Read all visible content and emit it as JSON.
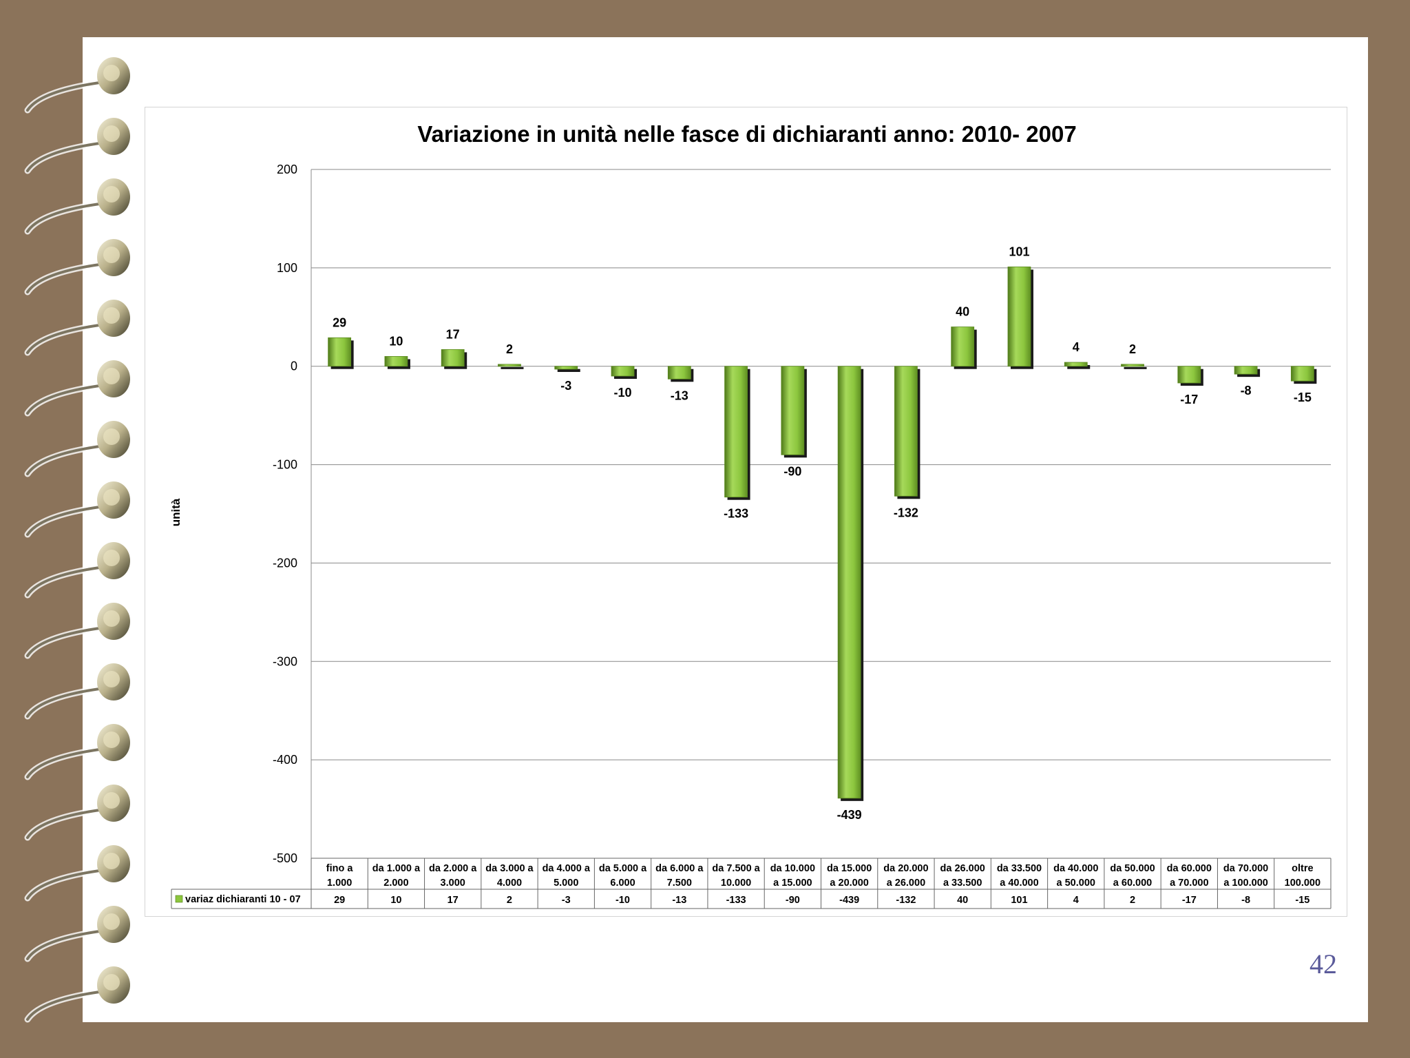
{
  "page": {
    "number": "42"
  },
  "colors": {
    "background": "#8b735a",
    "bar": "#8cc63e",
    "bar_dark": "#4f7a1a",
    "shadow": "#1a1a1a",
    "grid": "#888888"
  },
  "chart_data": {
    "type": "bar",
    "title": "Variazione in unità nelle fasce di  dichiaranti anno: 2010- 2007",
    "xlabel": "",
    "ylabel": "unità",
    "ylim": [
      -500,
      200
    ],
    "yticks": [
      200,
      100,
      0,
      -100,
      -200,
      -300,
      -400,
      -500
    ],
    "grid": true,
    "categories": [
      [
        "fino a",
        "1.000"
      ],
      [
        "da 1.000 a",
        "2.000"
      ],
      [
        "da 2.000 a",
        "3.000"
      ],
      [
        "da 3.000 a",
        "4.000"
      ],
      [
        "da 4.000 a",
        "5.000"
      ],
      [
        "da 5.000 a",
        "6.000"
      ],
      [
        "da 6.000 a",
        "7.500"
      ],
      [
        "da 7.500 a",
        "10.000"
      ],
      [
        "da 10.000",
        "a 15.000"
      ],
      [
        "da 15.000",
        "a 20.000"
      ],
      [
        "da 20.000",
        "a 26.000"
      ],
      [
        "da 26.000",
        "a 33.500"
      ],
      [
        "da 33.500",
        "a 40.000"
      ],
      [
        "da 40.000",
        "a 50.000"
      ],
      [
        "da 50.000",
        "a 60.000"
      ],
      [
        "da 60.000",
        "a 70.000"
      ],
      [
        "da 70.000",
        "a 100.000"
      ],
      [
        "oltre",
        "100.000"
      ]
    ],
    "series": [
      {
        "name": "variaz dichiaranti 10 - 07",
        "values": [
          29,
          10,
          17,
          2,
          -3,
          -10,
          -13,
          -133,
          -90,
          -439,
          -132,
          40,
          101,
          4,
          2,
          -17,
          -8,
          -15
        ]
      }
    ],
    "data_table": true
  }
}
